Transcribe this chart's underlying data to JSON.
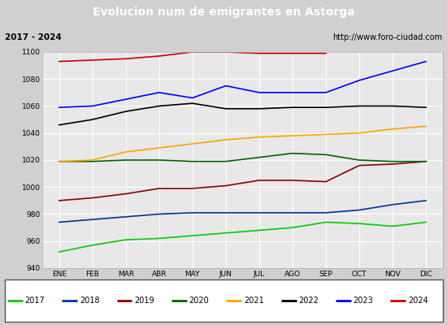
{
  "title": "Evolucion num de emigrantes en Astorga",
  "title_bg": "#5b8dd9",
  "title_color": "white",
  "subtitle_left": "2017 - 2024",
  "subtitle_right": "http://www.foro-ciudad.com",
  "months": [
    "ENE",
    "FEB",
    "MAR",
    "ABR",
    "MAY",
    "JUN",
    "JUL",
    "AGO",
    "SEP",
    "OCT",
    "NOV",
    "DIC"
  ],
  "ylim": [
    940,
    1100
  ],
  "yticks": [
    940,
    960,
    980,
    1000,
    1020,
    1040,
    1060,
    1080,
    1100
  ],
  "series": {
    "2017": {
      "color": "#00cc00",
      "data": [
        952,
        957,
        961,
        962,
        964,
        966,
        968,
        970,
        974,
        973,
        971,
        974
      ]
    },
    "2018": {
      "color": "#003399",
      "data": [
        974,
        976,
        978,
        980,
        981,
        981,
        981,
        981,
        981,
        983,
        987,
        990
      ]
    },
    "2019": {
      "color": "#8b0000",
      "data": [
        990,
        992,
        995,
        999,
        999,
        1001,
        1005,
        1005,
        1004,
        1016,
        1017,
        1019
      ]
    },
    "2020": {
      "color": "#006400",
      "data": [
        1019,
        1019,
        1020,
        1020,
        1019,
        1019,
        1022,
        1025,
        1024,
        1020,
        1019,
        1019
      ]
    },
    "2021": {
      "color": "#ffa500",
      "data": [
        1019,
        1020,
        1026,
        1029,
        1032,
        1035,
        1037,
        1038,
        1039,
        1040,
        1043,
        1045
      ]
    },
    "2022": {
      "color": "#000000",
      "data": [
        1046,
        1050,
        1056,
        1060,
        1062,
        1058,
        1058,
        1059,
        1059,
        1060,
        1060,
        1059
      ]
    },
    "2023": {
      "color": "#0000ff",
      "data": [
        1059,
        1060,
        1065,
        1070,
        1066,
        1075,
        1070,
        1070,
        1070,
        1079,
        1086,
        1093
      ]
    },
    "2024": {
      "color": "#cc0000",
      "data": [
        1093,
        1094,
        1095,
        1097,
        1100,
        1100,
        1099,
        1099,
        1099,
        null,
        null,
        null
      ]
    }
  },
  "legend_order": [
    "2017",
    "2018",
    "2019",
    "2020",
    "2021",
    "2022",
    "2023",
    "2024"
  ],
  "fig_bg": "#d0d0d0",
  "plot_bg": "#e8e8e8",
  "subtitle_bg": "white",
  "grid_color": "white"
}
